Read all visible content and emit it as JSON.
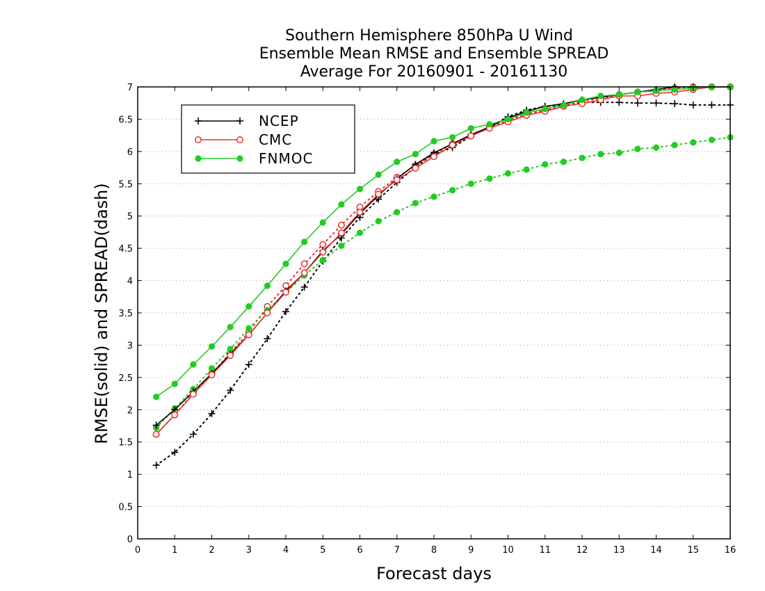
{
  "chart_data": {
    "type": "line",
    "title": [
      "Southern Hemisphere 850hPa U Wind",
      "Ensemble Mean RMSE and Ensemble SPREAD",
      "Average For 20160901 - 20161130"
    ],
    "xlabel": "Forecast days",
    "ylabel": "RMSE(solid) and SPREAD(dash)",
    "xlim": [
      0,
      16
    ],
    "ylim": [
      0,
      7
    ],
    "xticks": [
      0,
      1,
      2,
      3,
      4,
      5,
      6,
      7,
      8,
      9,
      10,
      11,
      12,
      13,
      14,
      15,
      16
    ],
    "yticks": [
      0,
      0.5,
      1,
      1.5,
      2,
      2.5,
      3,
      3.5,
      4,
      4.5,
      5,
      5.5,
      6,
      6.5,
      7
    ],
    "grid": "horizontal-dotted",
    "legend_position": "top-left",
    "x": [
      0.5,
      1,
      1.5,
      2,
      2.5,
      3,
      3.5,
      4,
      4.5,
      5,
      5.5,
      6,
      6.5,
      7,
      7.5,
      8,
      8.5,
      9,
      9.5,
      10,
      10.5,
      11,
      11.5,
      12,
      12.5,
      13,
      13.5,
      14,
      14.5,
      15,
      15.5,
      16
    ],
    "series": [
      {
        "name": "NCEP",
        "color": "#000000",
        "marker": "plus",
        "rmse": [
          1.76,
          2.0,
          2.28,
          2.56,
          2.86,
          3.16,
          3.5,
          3.84,
          4.12,
          4.46,
          4.72,
          5.04,
          5.32,
          5.58,
          5.8,
          5.98,
          6.12,
          6.26,
          6.38,
          6.52,
          6.62,
          6.7,
          6.74,
          6.8,
          6.84,
          6.88,
          6.92,
          6.96,
          7.0,
          7.02,
          7.04,
          7.06
        ],
        "spread": [
          1.14,
          1.34,
          1.62,
          1.94,
          2.3,
          2.7,
          3.1,
          3.52,
          3.9,
          4.3,
          4.66,
          4.98,
          5.26,
          5.52,
          5.76,
          5.96,
          6.06,
          6.24,
          6.38,
          6.54,
          6.64,
          6.7,
          6.72,
          6.76,
          6.76,
          6.76,
          6.75,
          6.75,
          6.74,
          6.72,
          6.72,
          6.72
        ]
      },
      {
        "name": "CMC",
        "color": "#e8312f",
        "marker": "open-circle",
        "rmse": [
          1.62,
          1.92,
          2.24,
          2.54,
          2.84,
          3.16,
          3.5,
          3.82,
          4.12,
          4.44,
          4.74,
          5.06,
          5.34,
          5.56,
          5.74,
          5.92,
          6.1,
          6.24,
          6.36,
          6.46,
          6.56,
          6.62,
          6.7,
          6.74,
          6.8,
          6.86,
          6.86,
          6.9,
          6.92,
          6.96,
          7.0,
          7.02
        ],
        "spread": [
          1.62,
          1.92,
          2.26,
          2.56,
          2.88,
          3.2,
          3.6,
          3.92,
          4.26,
          4.56,
          4.86,
          5.14,
          5.38,
          5.6,
          5.78,
          5.96,
          6.12,
          6.24,
          6.38,
          6.48,
          6.58,
          6.64,
          6.7,
          6.78,
          6.82,
          6.88,
          6.92,
          6.94,
          6.98,
          7.0,
          7.02,
          7.04
        ]
      },
      {
        "name": "FNMOC",
        "color": "#22cc22",
        "marker": "filled-circle",
        "rmse": [
          2.2,
          2.4,
          2.7,
          2.98,
          3.28,
          3.6,
          3.92,
          4.26,
          4.6,
          4.9,
          5.18,
          5.42,
          5.64,
          5.84,
          5.96,
          6.16,
          6.22,
          6.36,
          6.42,
          6.5,
          6.6,
          6.66,
          6.72,
          6.8,
          6.86,
          6.88,
          6.92,
          6.94,
          6.96,
          6.98,
          7.0,
          7.02
        ],
        "spread": [
          1.72,
          2.02,
          2.32,
          2.64,
          2.94,
          3.26,
          3.54,
          3.82,
          4.08,
          4.32,
          4.54,
          4.74,
          4.92,
          5.06,
          5.2,
          5.3,
          5.4,
          5.5,
          5.58,
          5.66,
          5.72,
          5.8,
          5.84,
          5.9,
          5.96,
          5.98,
          6.04,
          6.06,
          6.1,
          6.14,
          6.18,
          6.22
        ]
      }
    ]
  }
}
